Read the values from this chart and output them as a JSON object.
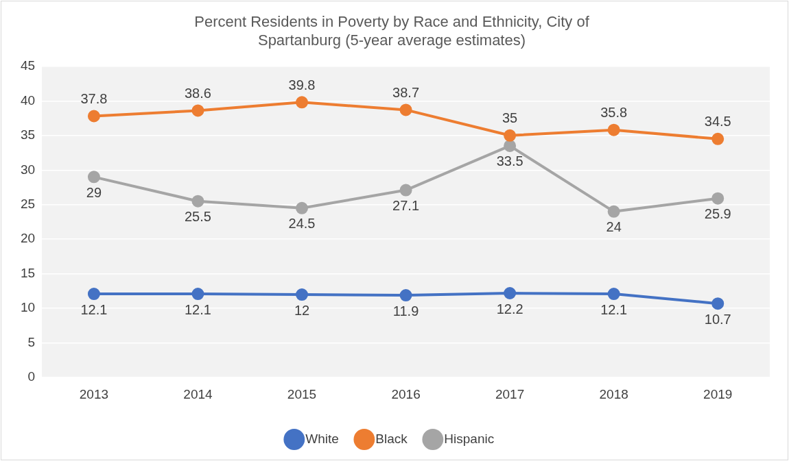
{
  "chart_data": {
    "type": "line",
    "title": "Percent Residents in Poverty by Race and Ethnicity, City of Spartanburg (5-year average estimates)",
    "categories": [
      "2013",
      "2014",
      "2015",
      "2016",
      "2017",
      "2018",
      "2019"
    ],
    "series": [
      {
        "name": "White",
        "color": "#4472c4",
        "values": [
          12.1,
          12.1,
          12,
          11.9,
          12.2,
          12.1,
          10.7
        ]
      },
      {
        "name": "Black",
        "color": "#ed7d31",
        "values": [
          37.8,
          38.6,
          39.8,
          38.7,
          35,
          35.8,
          34.5
        ]
      },
      {
        "name": "Hispanic",
        "color": "#a5a5a5",
        "values": [
          29,
          25.5,
          24.5,
          27.1,
          33.5,
          24,
          25.9
        ]
      }
    ],
    "ylim": [
      0,
      45
    ],
    "yticks": [
      0,
      5,
      10,
      15,
      20,
      25,
      30,
      35,
      40,
      45
    ],
    "grid": "y",
    "legend": "bottom",
    "marker": "circle",
    "line_style": "solid",
    "data_labels": true
  }
}
